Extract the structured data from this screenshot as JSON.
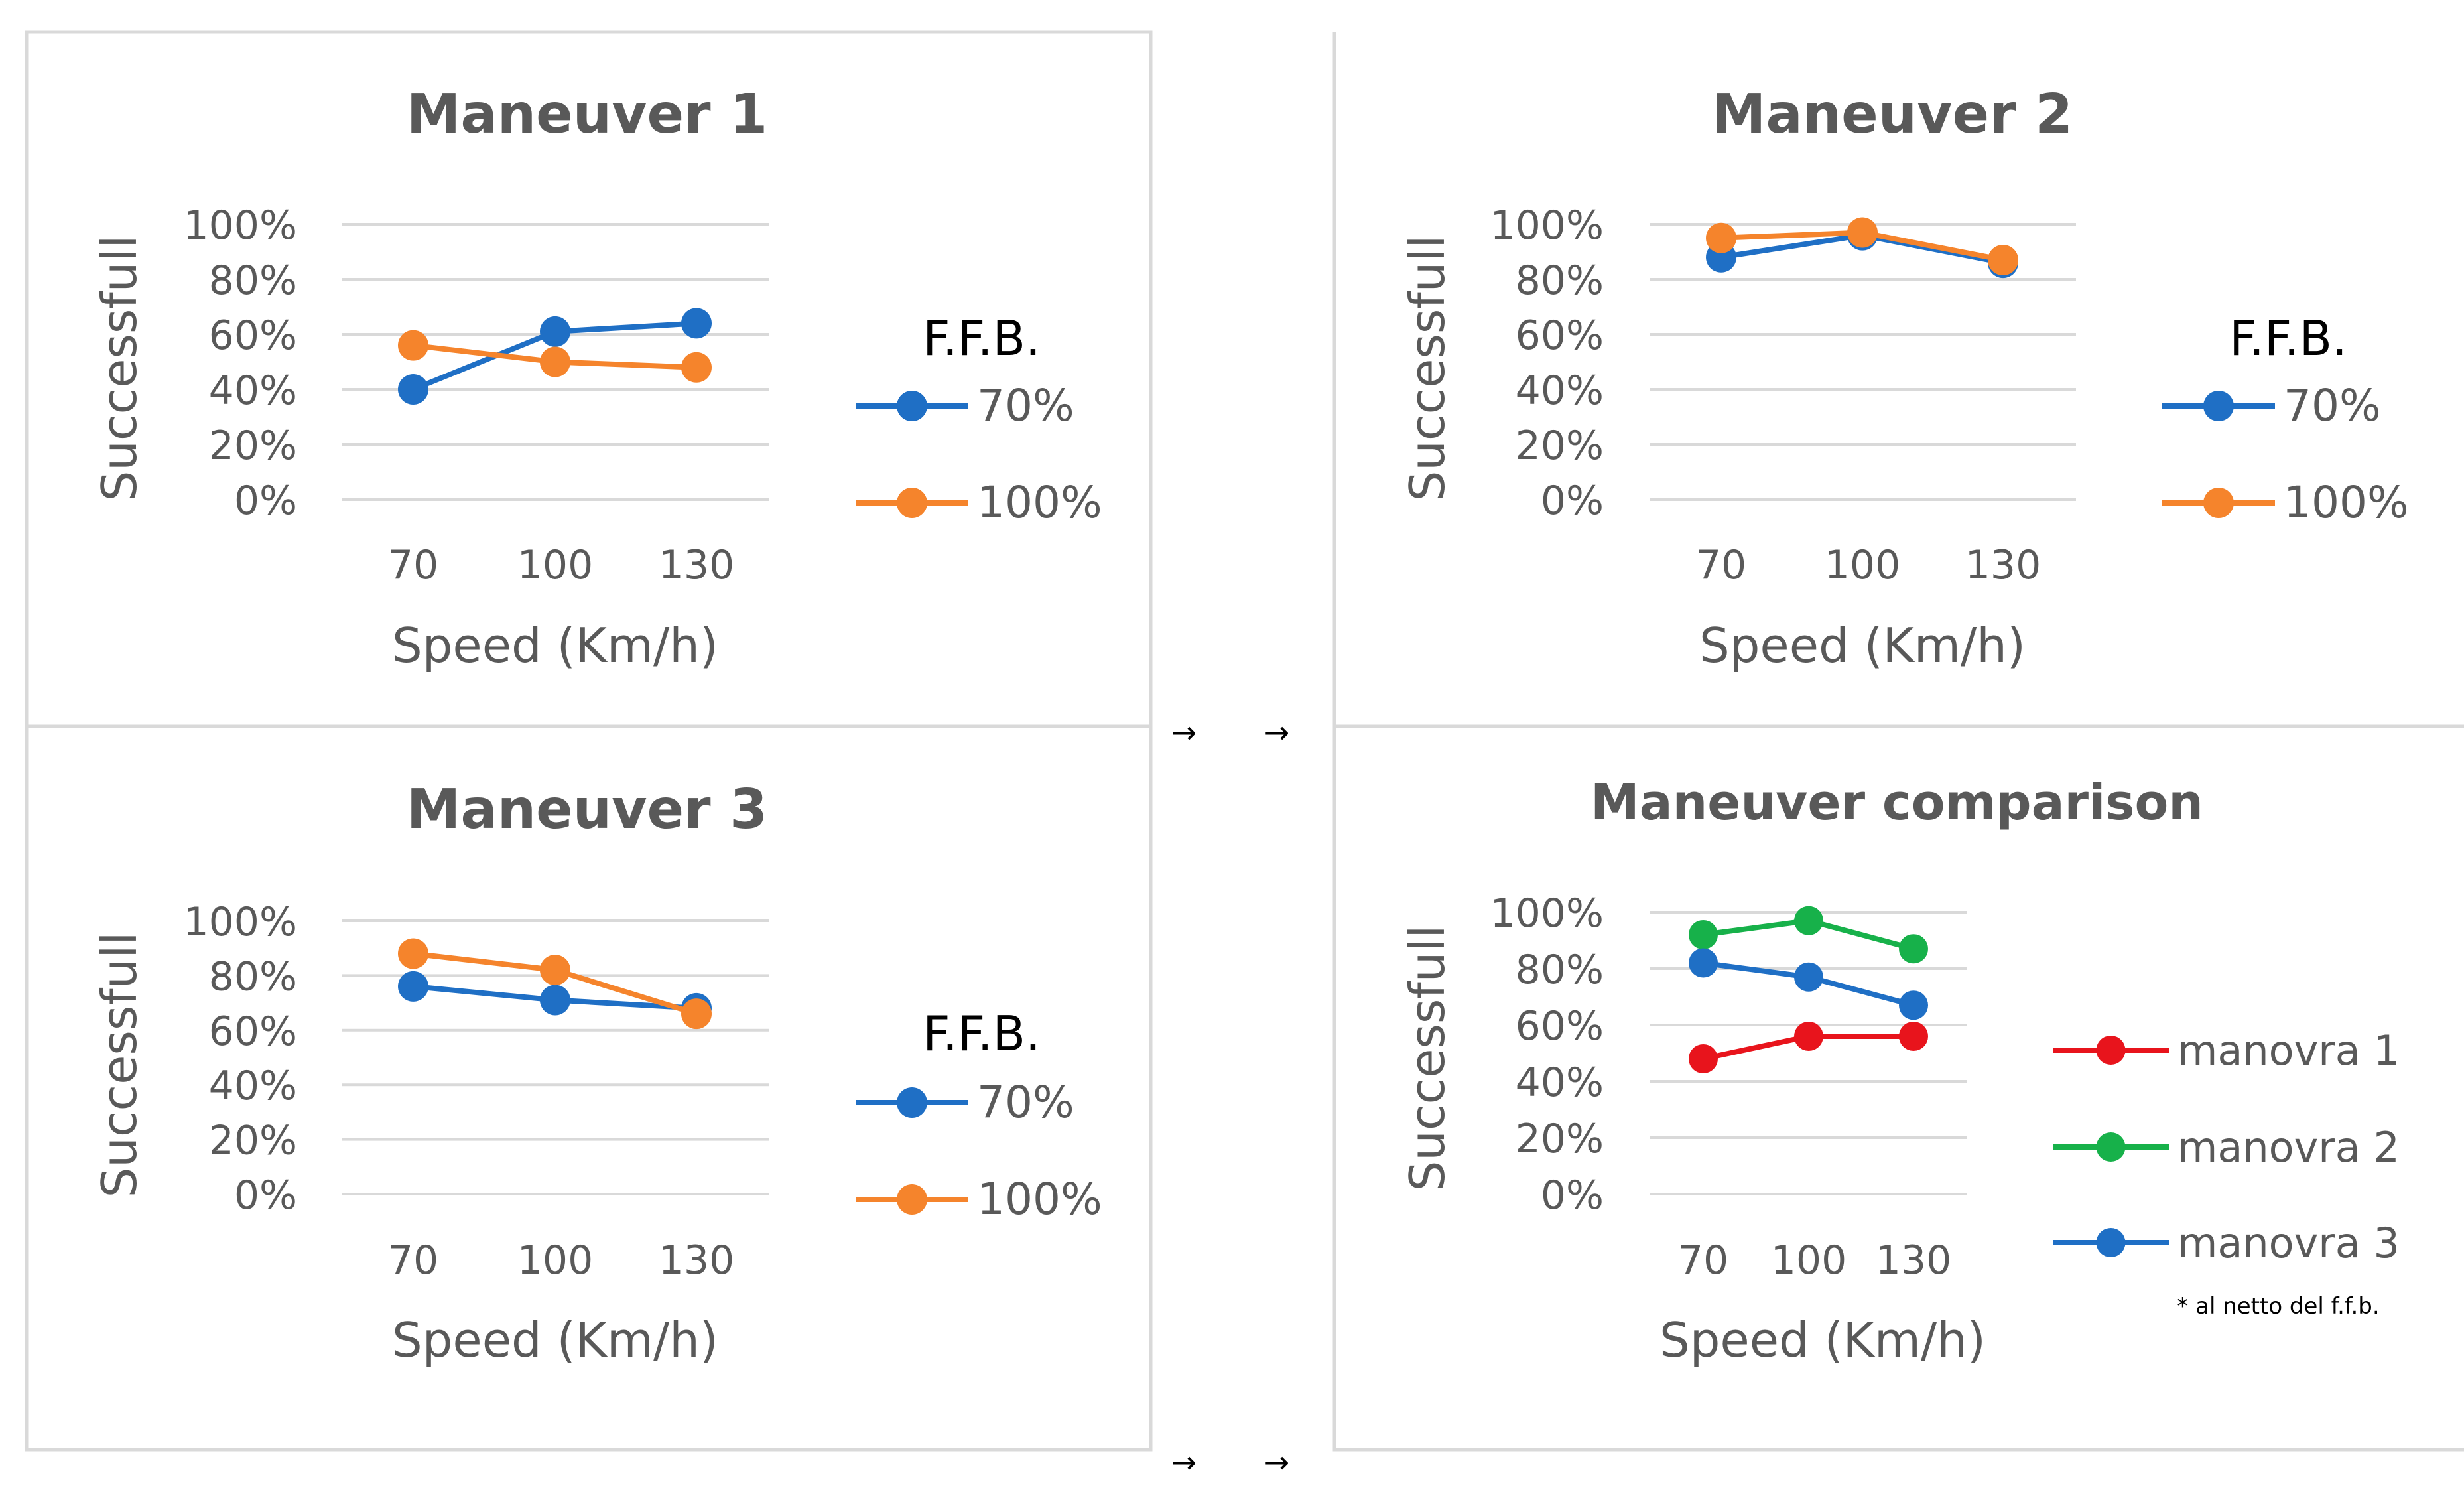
{
  "chart_data": [
    {
      "id": "m1",
      "type": "line",
      "title": "Maneuver 1",
      "xlabel": "Speed (Km/h)",
      "ylabel": "Successfull",
      "categories": [
        "70",
        "100",
        "130"
      ],
      "ylim": [
        0,
        100
      ],
      "yticks": [
        "100%",
        "80%",
        "60%",
        "40%",
        "20%",
        "0%"
      ],
      "legend_title": "F.F.B.",
      "legend_position": "right",
      "series": [
        {
          "name": "70%",
          "color": "#1f6fc5",
          "values": [
            40,
            61,
            64
          ]
        },
        {
          "name": "100%",
          "color": "#f5842c",
          "values": [
            56,
            50,
            48
          ]
        }
      ]
    },
    {
      "id": "m2",
      "type": "line",
      "title": "Maneuver 2",
      "xlabel": "Speed (Km/h)",
      "ylabel": "Successfull",
      "categories": [
        "70",
        "100",
        "130"
      ],
      "ylim": [
        0,
        100
      ],
      "yticks": [
        "100%",
        "80%",
        "60%",
        "40%",
        "20%",
        "0%"
      ],
      "legend_title": "F.F.B.",
      "legend_position": "right",
      "series": [
        {
          "name": "70%",
          "color": "#1f6fc5",
          "values": [
            88,
            96,
            86
          ]
        },
        {
          "name": "100%",
          "color": "#f5842c",
          "values": [
            95,
            97,
            87
          ]
        }
      ]
    },
    {
      "id": "m3",
      "type": "line",
      "title": "Maneuver 3",
      "xlabel": "Speed (Km/h)",
      "ylabel": "Successfull",
      "categories": [
        "70",
        "100",
        "130"
      ],
      "ylim": [
        0,
        100
      ],
      "yticks": [
        "100%",
        "80%",
        "60%",
        "40%",
        "20%",
        "0%"
      ],
      "legend_title": "F.F.B.",
      "legend_position": "right",
      "series": [
        {
          "name": "70%",
          "color": "#1f6fc5",
          "values": [
            76,
            71,
            68
          ]
        },
        {
          "name": "100%",
          "color": "#f5842c",
          "values": [
            88,
            82,
            66
          ]
        }
      ]
    },
    {
      "id": "cmp",
      "type": "line",
      "title": "Maneuver comparison",
      "xlabel": "Speed (Km/h)",
      "ylabel": "Successfull",
      "categories": [
        "70",
        "100",
        "130"
      ],
      "ylim": [
        0,
        100
      ],
      "yticks": [
        "100%",
        "80%",
        "60%",
        "40%",
        "20%",
        "0%"
      ],
      "legend_title": "",
      "legend_position": "right",
      "note": "* al netto del f.f.b.",
      "series": [
        {
          "name": "manovra 1",
          "color": "#e8141c",
          "values": [
            48,
            56,
            56
          ]
        },
        {
          "name": "manovra 2",
          "color": "#17b14a",
          "values": [
            92,
            97,
            87
          ]
        },
        {
          "name": "manovra 3",
          "color": "#1f6fc5",
          "values": [
            82,
            77,
            67
          ]
        }
      ]
    }
  ],
  "arrows": [
    "→",
    "→",
    "→",
    "→"
  ]
}
